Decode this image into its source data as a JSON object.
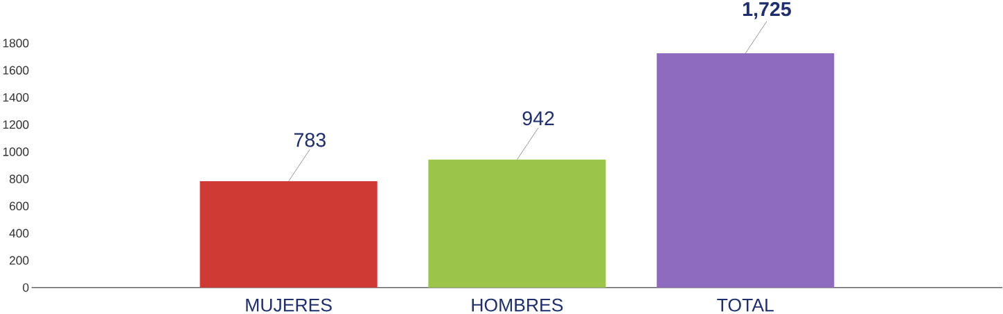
{
  "chart_data": {
    "type": "bar",
    "categories": [
      "MUJERES",
      "HOMBRES",
      "TOTAL"
    ],
    "values": [
      783,
      942,
      1725
    ],
    "colors": [
      "#d03a35",
      "#9bc44a",
      "#8e6bbf"
    ],
    "value_labels": [
      "783",
      "942",
      "**1,725**"
    ],
    "ylim": [
      0,
      1800
    ],
    "yticks": [
      0,
      200,
      400,
      600,
      800,
      1000,
      1200,
      1400,
      1600,
      1800
    ],
    "legend": false
  }
}
